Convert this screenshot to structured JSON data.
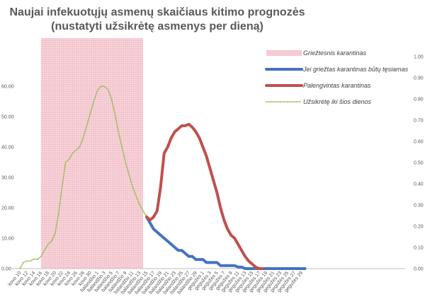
{
  "chart_data": {
    "type": "line",
    "title_lines": [
      "Naujai infekuotųjų asmenų skaičiaus kitimo prognozės",
      "(nustatyti užsikrėtę asmenys per dieną)"
    ],
    "xlabel": "",
    "ylabel": "",
    "ylim": [
      0,
      70
    ],
    "y2lim": [
      0,
      1
    ],
    "grid": false,
    "legend_position": "right",
    "y_ticks": [
      "0.00",
      "10.00",
      "20.00",
      "30.00",
      "40.00",
      "50.00",
      "60.00"
    ],
    "y2_ticks": [
      "0.00",
      "0.10",
      "0.20",
      "0.30",
      "0.40",
      "0.50",
      "0.60",
      "0.70",
      "0.80",
      "0.90",
      "1.00"
    ],
    "categories": [
      "kovo 10",
      "kovo 12",
      "kovo 14",
      "kovo 16",
      "kovo 18",
      "kovo 20",
      "kovo 22",
      "kovo 24",
      "kovo 26",
      "kovo 28",
      "kovo 30",
      "balandžio 1",
      "balandžio 3",
      "balandžio 5",
      "balandžio 7",
      "balandžio 9",
      "balandžio 11",
      "balandžio 13",
      "balandžio 15",
      "balandžio 17",
      "balandžio 19",
      "balandžio 21",
      "balandžio 23",
      "balandžio 25",
      "balandžio 27",
      "balandžio 29",
      "gegužės 1",
      "gegužės 3",
      "gegužės 5",
      "gegužės 7",
      "gegužės 9",
      "gegužės 11",
      "gegužės 13",
      "gegužės 15",
      "gegužės 17",
      "gegužės 19",
      "gegužės 21",
      "gegužės 23",
      "gegužės 25",
      "gegužės 27",
      "gegužės 29"
    ],
    "shaded_range": {
      "name": "Griežtesnis karantinas",
      "from": "kovo 16",
      "to": "balandžio 14",
      "color": "#f4c6cf"
    },
    "series": [
      {
        "name": "Užsikrėtę iki šios dienos",
        "color": "#9bbb59",
        "style": "dotted",
        "points": [
          [
            "kovo 10",
            0
          ],
          [
            "kovo 11",
            2
          ],
          [
            "kovo 12",
            2.5
          ],
          [
            "kovo 13",
            2.5
          ],
          [
            "kovo 14",
            3.2
          ],
          [
            "kovo 15",
            3
          ],
          [
            "kovo 16",
            4
          ],
          [
            "kovo 17",
            6
          ],
          [
            "kovo 18",
            8
          ],
          [
            "kovo 19",
            9
          ],
          [
            "kovo 20",
            11.5
          ],
          [
            "kovo 21",
            18
          ],
          [
            "kovo 22",
            27
          ],
          [
            "kovo 23",
            35
          ],
          [
            "kovo 24",
            36
          ],
          [
            "kovo 25",
            38
          ],
          [
            "kovo 26",
            39
          ],
          [
            "kovo 27",
            40
          ],
          [
            "kovo 28",
            43
          ],
          [
            "kovo 29",
            47
          ],
          [
            "kovo 30",
            51
          ],
          [
            "kovo 31",
            55
          ],
          [
            "balandžio 1",
            58.5
          ],
          [
            "balandžio 2",
            60
          ],
          [
            "balandžio 3",
            60
          ],
          [
            "balandžio 4",
            59
          ],
          [
            "balandžio 5",
            56
          ],
          [
            "balandžio 6",
            51
          ],
          [
            "balandžio 7",
            45
          ],
          [
            "balandžio 8",
            40
          ],
          [
            "balandžio 9",
            35
          ],
          [
            "balandžio 10",
            31
          ],
          [
            "balandžio 11",
            27
          ],
          [
            "balandžio 12",
            24
          ],
          [
            "balandžio 13",
            21
          ],
          [
            "balandžio 14",
            19
          ],
          [
            "balandžio 15",
            17
          ]
        ]
      },
      {
        "name": "Jei griežtas karantinas būtų tęsiamas",
        "color": "#4472c4",
        "style": "solid",
        "points": [
          [
            "balandžio 15",
            17
          ],
          [
            "balandžio 16",
            15
          ],
          [
            "balandžio 17",
            13
          ],
          [
            "balandžio 18",
            12
          ],
          [
            "balandžio 19",
            11
          ],
          [
            "balandžio 20",
            10
          ],
          [
            "balandžio 21",
            9
          ],
          [
            "balandžio 22",
            8
          ],
          [
            "balandžio 23",
            7
          ],
          [
            "balandžio 24",
            6
          ],
          [
            "balandžio 25",
            6
          ],
          [
            "balandžio 26",
            5
          ],
          [
            "balandžio 27",
            4
          ],
          [
            "balandžio 28",
            4
          ],
          [
            "balandžio 29",
            3
          ],
          [
            "balandžio 30",
            3
          ],
          [
            "gegužės 1",
            3
          ],
          [
            "gegužės 2",
            2
          ],
          [
            "gegužės 3",
            2
          ],
          [
            "gegužės 4",
            2
          ],
          [
            "gegužės 5",
            2
          ],
          [
            "gegužės 6",
            1
          ],
          [
            "gegužės 7",
            1
          ],
          [
            "gegužės 8",
            1
          ],
          [
            "gegužės 9",
            1
          ],
          [
            "gegužės 10",
            1
          ],
          [
            "gegužės 11",
            0.5
          ],
          [
            "gegužės 12",
            0.5
          ],
          [
            "gegužės 13",
            0
          ],
          [
            "gegužės 14",
            0
          ],
          [
            "gegužės 15",
            0
          ],
          [
            "gegužės 17",
            0
          ],
          [
            "gegužės 19",
            0
          ],
          [
            "gegužės 21",
            0
          ],
          [
            "gegužės 23",
            0
          ],
          [
            "gegužės 25",
            0
          ],
          [
            "gegužės 27",
            0
          ],
          [
            "gegužės 29",
            0
          ],
          [
            "gegužės 30",
            0
          ]
        ]
      },
      {
        "name": "Palengvintas karantinas",
        "color": "#c0504d",
        "style": "solid",
        "points": [
          [
            "balandžio 15",
            17
          ],
          [
            "balandžio 16",
            16
          ],
          [
            "balandžio 17",
            17
          ],
          [
            "balandžio 18",
            19
          ],
          [
            "balandžio 19",
            27
          ],
          [
            "balandžio 20",
            38
          ],
          [
            "balandžio 21",
            40
          ],
          [
            "balandžio 22",
            43
          ],
          [
            "balandžio 23",
            45
          ],
          [
            "balandžio 24",
            46
          ],
          [
            "balandžio 25",
            47
          ],
          [
            "balandžio 26",
            47
          ],
          [
            "balandžio 27",
            47.5
          ],
          [
            "balandžio 28",
            46.5
          ],
          [
            "balandžio 29",
            45
          ],
          [
            "balandžio 30",
            43
          ],
          [
            "gegužės 1",
            40
          ],
          [
            "gegužės 2",
            37
          ],
          [
            "gegužės 3",
            33
          ],
          [
            "gegužės 4",
            29
          ],
          [
            "gegužės 5",
            25
          ],
          [
            "gegužės 6",
            20
          ],
          [
            "gegužės 7",
            16
          ],
          [
            "gegužės 8",
            13
          ],
          [
            "gegužės 9",
            11
          ],
          [
            "gegužės 10",
            10
          ],
          [
            "gegužės 11",
            8
          ],
          [
            "gegužės 12",
            6
          ],
          [
            "gegužės 13",
            4
          ],
          [
            "gegužės 14",
            2.5
          ],
          [
            "gegužės 15",
            1.5
          ],
          [
            "gegužės 16",
            0.5
          ],
          [
            "gegužės 17",
            0
          ],
          [
            "gegužės 18",
            0
          ]
        ]
      }
    ]
  }
}
